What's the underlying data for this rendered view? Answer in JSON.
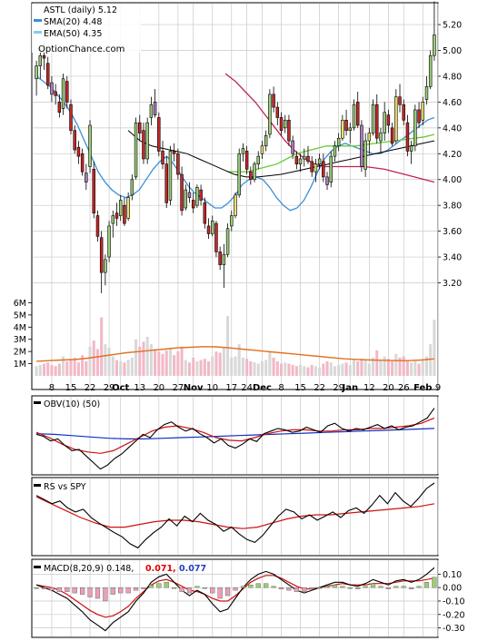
{
  "chart_data": {
    "type": "candlestick",
    "colors": {
      "up_candle": "#9ccc7a",
      "up_candle_alt": "#e8e070",
      "down_candle": "#c62828",
      "down_candle_alt": "#b07cc0",
      "sma20": "#3a8fd8",
      "sma50": "#c0245a",
      "ema50": "#66cc33",
      "volume_up": "#d8d8d8",
      "volume_down": "#f2b8c6",
      "volume_avg": "#e07020",
      "obv": "#000000",
      "obv_sig1": "#d01010",
      "obv_sig2": "#1030c0",
      "macd_line": "#000000",
      "macd_signal": "#d01010",
      "hist_pos": "#9ccc7a",
      "hist_neg": "#e8a0b4",
      "label_red": "#e00000",
      "label_blue": "#2040c0"
    },
    "price_panel": {
      "title": "ASTL (daily) 5.12",
      "watermark": "OptionChance.com",
      "legend": [
        {
          "label": "SMA(20) 4.48",
          "color": "#3a8fd8"
        },
        {
          "label": "EMA(50) 4.35",
          "color": "#8cc8f0"
        }
      ],
      "y_ticks": [
        "5.20",
        "5.00",
        "4.80",
        "4.60",
        "4.40",
        "4.20",
        "4.00",
        "3.80",
        "3.60",
        "3.40",
        "3.20"
      ],
      "y_range": [
        3.07,
        5.32
      ],
      "volume_ticks": [
        "6M",
        "5M",
        "4M",
        "3M",
        "2M",
        "1M"
      ],
      "volume_range_millions": [
        0,
        7.3
      ],
      "x_ticks": [
        "8",
        "15",
        "22",
        "29",
        "Oct",
        "13",
        "20",
        "27",
        "Nov",
        "10",
        "17",
        "24",
        "Dec",
        "8",
        "15",
        "22",
        "29",
        "Jan",
        "12",
        "20",
        "26",
        "Feb",
        "9"
      ],
      "x_tick_bold": [
        "Oct",
        "Nov",
        "Dec",
        "Jan",
        "Feb"
      ],
      "x_tick_bar_index": [
        4,
        9,
        14,
        19,
        22,
        27,
        32,
        37,
        41,
        46,
        51,
        55,
        59,
        64,
        69,
        74,
        79,
        82,
        87,
        92,
        96,
        101,
        105
      ],
      "candles": [
        [
          4.78,
          4.92,
          4.65,
          4.88,
          0.8
        ],
        [
          4.88,
          5.02,
          4.78,
          4.96,
          0.9
        ],
        [
          4.96,
          5.06,
          4.85,
          4.94,
          1.0
        ],
        [
          4.9,
          4.95,
          4.7,
          4.73,
          1.1
        ],
        [
          4.75,
          4.8,
          4.6,
          4.66,
          0.9
        ],
        [
          4.68,
          4.74,
          4.58,
          4.65,
          0.8
        ],
        [
          4.6,
          4.66,
          4.48,
          4.52,
          1.0
        ],
        [
          4.55,
          4.82,
          4.5,
          4.78,
          1.6
        ],
        [
          4.76,
          4.8,
          4.55,
          4.6,
          1.2
        ],
        [
          4.58,
          4.62,
          4.35,
          4.38,
          1.4
        ],
        [
          4.38,
          4.42,
          4.2,
          4.23,
          1.5
        ],
        [
          4.25,
          4.3,
          4.12,
          4.18,
          1.1
        ],
        [
          4.2,
          4.24,
          4.03,
          4.06,
          1.7
        ],
        [
          4.05,
          4.12,
          3.92,
          3.98,
          1.2
        ],
        [
          4.1,
          4.46,
          4.05,
          4.42,
          2.4
        ],
        [
          4.08,
          4.14,
          3.7,
          3.74,
          2.9
        ],
        [
          3.72,
          3.76,
          3.52,
          3.56,
          2.2
        ],
        [
          3.55,
          3.6,
          3.12,
          3.28,
          4.8
        ],
        [
          3.28,
          3.42,
          3.18,
          3.38,
          2.6
        ],
        [
          3.4,
          3.68,
          3.36,
          3.64,
          2.3
        ],
        [
          3.66,
          3.76,
          3.55,
          3.72,
          1.6
        ],
        [
          3.74,
          3.82,
          3.64,
          3.7,
          1.3
        ],
        [
          3.72,
          3.88,
          3.68,
          3.84,
          1.2
        ],
        [
          3.8,
          3.86,
          3.64,
          3.66,
          1.1
        ],
        [
          3.7,
          3.9,
          3.68,
          3.86,
          1.3
        ],
        [
          3.88,
          4.04,
          3.84,
          4.0,
          1.5
        ],
        [
          4.02,
          4.48,
          4.0,
          4.44,
          3.0
        ],
        [
          4.44,
          4.5,
          4.3,
          4.36,
          2.4
        ],
        [
          4.38,
          4.44,
          4.12,
          4.16,
          2.8
        ],
        [
          4.16,
          4.48,
          4.12,
          4.44,
          3.2
        ],
        [
          4.48,
          4.64,
          4.42,
          4.58,
          2.6
        ],
        [
          4.6,
          4.7,
          4.48,
          4.5,
          2.2
        ],
        [
          4.48,
          4.52,
          4.18,
          4.22,
          2.0
        ],
        [
          4.22,
          4.3,
          4.08,
          4.12,
          1.8
        ],
        [
          4.12,
          4.18,
          3.78,
          3.82,
          2.1
        ],
        [
          3.84,
          4.26,
          3.8,
          4.22,
          2.3
        ],
        [
          4.22,
          4.28,
          4.14,
          4.2,
          1.7
        ],
        [
          4.2,
          4.24,
          4.0,
          4.04,
          2.0
        ],
        [
          4.04,
          4.1,
          3.72,
          3.76,
          2.4
        ],
        [
          3.78,
          3.96,
          3.76,
          3.92,
          1.3
        ],
        [
          3.9,
          3.98,
          3.82,
          3.86,
          1.1
        ],
        [
          3.84,
          3.9,
          3.74,
          3.78,
          1.5
        ],
        [
          3.8,
          3.96,
          3.78,
          3.94,
          1.2
        ],
        [
          3.92,
          3.96,
          3.8,
          3.84,
          1.3
        ],
        [
          3.82,
          3.86,
          3.62,
          3.66,
          1.4
        ],
        [
          3.64,
          3.7,
          3.54,
          3.58,
          1.2
        ],
        [
          3.58,
          3.72,
          3.56,
          3.68,
          1.6
        ],
        [
          3.66,
          3.68,
          3.4,
          3.44,
          2.0
        ],
        [
          3.44,
          3.48,
          3.3,
          3.34,
          1.9
        ],
        [
          3.34,
          3.5,
          3.16,
          3.42,
          2.4
        ],
        [
          3.42,
          3.66,
          3.4,
          3.62,
          4.9
        ],
        [
          3.64,
          3.76,
          3.6,
          3.72,
          1.5
        ],
        [
          3.72,
          3.9,
          3.7,
          3.88,
          1.6
        ],
        [
          3.88,
          4.24,
          3.86,
          4.2,
          2.6
        ],
        [
          4.2,
          4.28,
          4.14,
          4.24,
          1.5
        ],
        [
          4.22,
          4.26,
          4.04,
          4.08,
          1.4
        ],
        [
          4.06,
          4.1,
          3.96,
          4.0,
          1.2
        ],
        [
          4.0,
          4.14,
          3.98,
          4.12,
          1.1
        ],
        [
          4.12,
          4.22,
          4.08,
          4.18,
          1.0
        ],
        [
          4.2,
          4.3,
          4.16,
          4.26,
          1.2
        ],
        [
          4.26,
          4.38,
          4.22,
          4.34,
          1.3
        ],
        [
          4.35,
          4.7,
          4.32,
          4.66,
          2.0
        ],
        [
          4.66,
          4.72,
          4.52,
          4.56,
          1.5
        ],
        [
          4.56,
          4.6,
          4.42,
          4.48,
          1.2
        ],
        [
          4.48,
          4.52,
          4.34,
          4.38,
          1.0
        ],
        [
          4.4,
          4.5,
          4.36,
          4.46,
          1.1
        ],
        [
          4.46,
          4.5,
          4.26,
          4.3,
          1.0
        ],
        [
          4.3,
          4.34,
          4.16,
          4.2,
          0.9
        ],
        [
          4.18,
          4.22,
          4.08,
          4.12,
          0.8
        ],
        [
          4.12,
          4.2,
          4.06,
          4.16,
          0.9
        ],
        [
          4.16,
          4.24,
          4.1,
          4.18,
          0.8
        ],
        [
          4.18,
          4.26,
          4.12,
          4.14,
          0.7
        ],
        [
          4.14,
          4.18,
          4.02,
          4.06,
          0.9
        ],
        [
          4.06,
          4.16,
          3.98,
          4.12,
          0.8
        ],
        [
          4.12,
          4.2,
          4.08,
          4.16,
          0.7
        ],
        [
          4.14,
          4.2,
          3.98,
          4.02,
          1.0
        ],
        [
          4.02,
          4.06,
          3.92,
          3.96,
          1.2
        ],
        [
          3.98,
          4.22,
          3.94,
          4.18,
          1.1
        ],
        [
          4.18,
          4.3,
          4.14,
          4.26,
          0.8
        ],
        [
          4.26,
          4.36,
          4.22,
          4.32,
          0.9
        ],
        [
          4.32,
          4.5,
          4.3,
          4.46,
          1.0
        ],
        [
          4.46,
          4.54,
          4.34,
          4.38,
          1.1
        ],
        [
          4.38,
          4.44,
          4.28,
          4.4,
          0.9
        ],
        [
          4.4,
          4.62,
          4.38,
          4.58,
          1.3
        ],
        [
          4.6,
          4.68,
          4.4,
          4.42,
          1.2
        ],
        [
          4.42,
          4.46,
          4.06,
          4.1,
          1.4
        ],
        [
          4.08,
          4.36,
          4.02,
          4.3,
          1.3
        ],
        [
          4.3,
          4.4,
          4.2,
          4.36,
          1.0
        ],
        [
          4.36,
          4.62,
          4.34,
          4.58,
          1.5
        ],
        [
          4.58,
          4.66,
          4.28,
          4.32,
          2.1
        ],
        [
          4.3,
          4.4,
          4.2,
          4.36,
          1.3
        ],
        [
          4.36,
          4.6,
          4.3,
          4.52,
          1.6
        ],
        [
          4.5,
          4.54,
          4.36,
          4.42,
          1.4
        ],
        [
          4.4,
          4.44,
          4.26,
          4.28,
          1.2
        ],
        [
          4.3,
          4.7,
          4.28,
          4.64,
          1.8
        ],
        [
          4.64,
          4.74,
          4.52,
          4.58,
          1.5
        ],
        [
          4.58,
          4.62,
          4.42,
          4.46,
          1.6
        ],
        [
          4.44,
          4.5,
          4.18,
          4.22,
          1.3
        ],
        [
          4.22,
          4.3,
          4.12,
          4.26,
          1.1
        ],
        [
          4.26,
          4.58,
          4.22,
          4.54,
          1.2
        ],
        [
          4.54,
          4.6,
          4.4,
          4.44,
          1.0
        ],
        [
          4.46,
          4.64,
          4.42,
          4.6,
          1.3
        ],
        [
          4.62,
          4.8,
          4.58,
          4.72,
          1.6
        ],
        [
          4.72,
          5.0,
          4.7,
          4.96,
          2.6
        ],
        [
          4.96,
          5.38,
          4.92,
          5.12,
          4.6
        ]
      ],
      "sma20": [
        4.8,
        4.76,
        4.72,
        4.66,
        4.6,
        4.52,
        4.42,
        4.3,
        4.18,
        4.06,
        3.98,
        3.92,
        3.88,
        3.86,
        3.88,
        3.92,
        4.0,
        4.08,
        4.14,
        4.18,
        4.12,
        4.04,
        3.96,
        3.9,
        3.86,
        3.82,
        3.78,
        3.78,
        3.82,
        3.88,
        3.96,
        4.0,
        4.02,
        4.0,
        3.94,
        3.86,
        3.8,
        3.76,
        3.78,
        3.84,
        3.94,
        4.06,
        4.16,
        4.22,
        4.26,
        4.28,
        4.26,
        4.24,
        4.22,
        4.2,
        4.2,
        4.22,
        4.26,
        4.3,
        4.34,
        4.38,
        4.42,
        4.46,
        4.48
      ],
      "sma50": [
        null,
        null,
        null,
        null,
        null,
        null,
        null,
        null,
        null,
        null,
        null,
        null,
        null,
        null,
        null,
        null,
        null,
        null,
        null,
        4.82,
        4.76,
        4.68,
        4.6,
        4.5,
        4.4,
        4.3,
        4.22,
        4.16,
        4.12,
        4.1,
        4.1,
        4.1,
        4.1,
        4.1,
        4.09,
        4.08,
        4.06,
        4.04,
        4.02,
        4.0,
        3.98
      ],
      "ema50": [
        4.06,
        4.06,
        4.06,
        4.08,
        4.1,
        4.12,
        4.16,
        4.2,
        4.22,
        4.24,
        4.26,
        4.26,
        4.26,
        4.26,
        4.27,
        4.28,
        4.29,
        4.3,
        4.31,
        4.32,
        4.33,
        4.35
      ],
      "volume_avg": [
        1.2,
        1.25,
        1.3,
        1.35,
        1.45,
        1.6,
        1.75,
        1.9,
        2.0,
        2.1,
        2.2,
        2.3,
        2.35,
        2.4,
        2.38,
        2.3,
        2.2,
        2.1,
        2.0,
        1.9,
        1.8,
        1.7,
        1.6,
        1.5,
        1.4,
        1.35,
        1.3,
        1.28,
        1.25,
        1.25,
        1.3,
        1.4
      ]
    },
    "obv_panel": {
      "label": "OBV(10) (50)",
      "series": [
        0.55,
        0.52,
        0.45,
        0.48,
        0.38,
        0.3,
        0.32,
        0.22,
        0.12,
        0.02,
        0.08,
        0.18,
        0.25,
        0.35,
        0.45,
        0.55,
        0.5,
        0.62,
        0.7,
        0.74,
        0.66,
        0.6,
        0.64,
        0.56,
        0.5,
        0.42,
        0.48,
        0.38,
        0.34,
        0.4,
        0.48,
        0.44,
        0.56,
        0.6,
        0.64,
        0.62,
        0.58,
        0.6,
        0.66,
        0.62,
        0.58,
        0.68,
        0.72,
        0.64,
        0.6,
        0.64,
        0.62,
        0.66,
        0.7,
        0.64,
        0.68,
        0.62,
        0.66,
        0.68,
        0.74,
        0.8,
        0.95
      ],
      "sig1": [
        0.58,
        0.5,
        0.4,
        0.32,
        0.28,
        0.26,
        0.3,
        0.4,
        0.5,
        0.6,
        0.66,
        0.68,
        0.64,
        0.58,
        0.5,
        0.46,
        0.45,
        0.5,
        0.56,
        0.6,
        0.62,
        0.62,
        0.6,
        0.6,
        0.62,
        0.62,
        0.64,
        0.64,
        0.66,
        0.68,
        0.72,
        0.8
      ],
      "sig2": [
        0.56,
        0.55,
        0.53,
        0.51,
        0.49,
        0.48,
        0.48,
        0.49,
        0.5,
        0.51,
        0.52,
        0.53,
        0.54,
        0.55,
        0.56,
        0.57,
        0.58,
        0.59,
        0.6,
        0.61,
        0.62,
        0.63,
        0.64
      ]
    },
    "rs_panel": {
      "label": "RS vs SPY",
      "series": [
        0.82,
        0.76,
        0.7,
        0.74,
        0.64,
        0.58,
        0.62,
        0.5,
        0.42,
        0.35,
        0.28,
        0.22,
        0.12,
        0.06,
        0.18,
        0.28,
        0.36,
        0.48,
        0.38,
        0.52,
        0.44,
        0.56,
        0.46,
        0.4,
        0.3,
        0.36,
        0.26,
        0.18,
        0.14,
        0.24,
        0.38,
        0.52,
        0.62,
        0.58,
        0.48,
        0.54,
        0.46,
        0.52,
        0.58,
        0.5,
        0.6,
        0.64,
        0.56,
        0.68,
        0.82,
        0.7,
        0.86,
        0.74,
        0.66,
        0.78,
        0.92,
        1.0
      ],
      "sig1": [
        0.8,
        0.7,
        0.6,
        0.5,
        0.42,
        0.36,
        0.36,
        0.4,
        0.44,
        0.46,
        0.46,
        0.44,
        0.4,
        0.36,
        0.34,
        0.36,
        0.42,
        0.48,
        0.52,
        0.54,
        0.54,
        0.56,
        0.58,
        0.6,
        0.62,
        0.64,
        0.66,
        0.7
      ]
    },
    "macd_panel": {
      "label_prefix": "MACD(8,20,9) 0.148,",
      "label_signal": "0.071,",
      "label_hist": "0.077",
      "y_ticks": [
        "0.10",
        "0.00",
        "-0.10",
        "-0.20",
        "-0.30"
      ],
      "y_range": [
        -0.35,
        0.17
      ],
      "macd": [
        0.02,
        0.0,
        -0.02,
        -0.05,
        -0.08,
        -0.13,
        -0.18,
        -0.24,
        -0.28,
        -0.32,
        -0.26,
        -0.22,
        -0.18,
        -0.1,
        -0.04,
        0.04,
        0.08,
        0.1,
        0.04,
        -0.02,
        -0.06,
        -0.02,
        -0.05,
        -0.12,
        -0.18,
        -0.16,
        -0.08,
        0.0,
        0.06,
        0.1,
        0.12,
        0.1,
        0.06,
        0.02,
        -0.02,
        -0.04,
        -0.02,
        0.0,
        0.02,
        0.04,
        0.04,
        0.02,
        0.01,
        0.03,
        0.06,
        0.04,
        0.02,
        0.05,
        0.06,
        0.04,
        0.06,
        0.1,
        0.148
      ],
      "signal": [
        0.02,
        0.01,
        0.0,
        -0.02,
        -0.05,
        -0.09,
        -0.13,
        -0.17,
        -0.2,
        -0.22,
        -0.21,
        -0.18,
        -0.14,
        -0.08,
        -0.03,
        0.02,
        0.05,
        0.06,
        0.04,
        0.01,
        -0.02,
        -0.03,
        -0.05,
        -0.08,
        -0.1,
        -0.1,
        -0.06,
        -0.01,
        0.04,
        0.07,
        0.09,
        0.09,
        0.07,
        0.04,
        0.01,
        -0.01,
        -0.01,
        0.0,
        0.01,
        0.02,
        0.03,
        0.02,
        0.02,
        0.02,
        0.03,
        0.03,
        0.03,
        0.04,
        0.05,
        0.05,
        0.05,
        0.06,
        0.071
      ]
    }
  }
}
